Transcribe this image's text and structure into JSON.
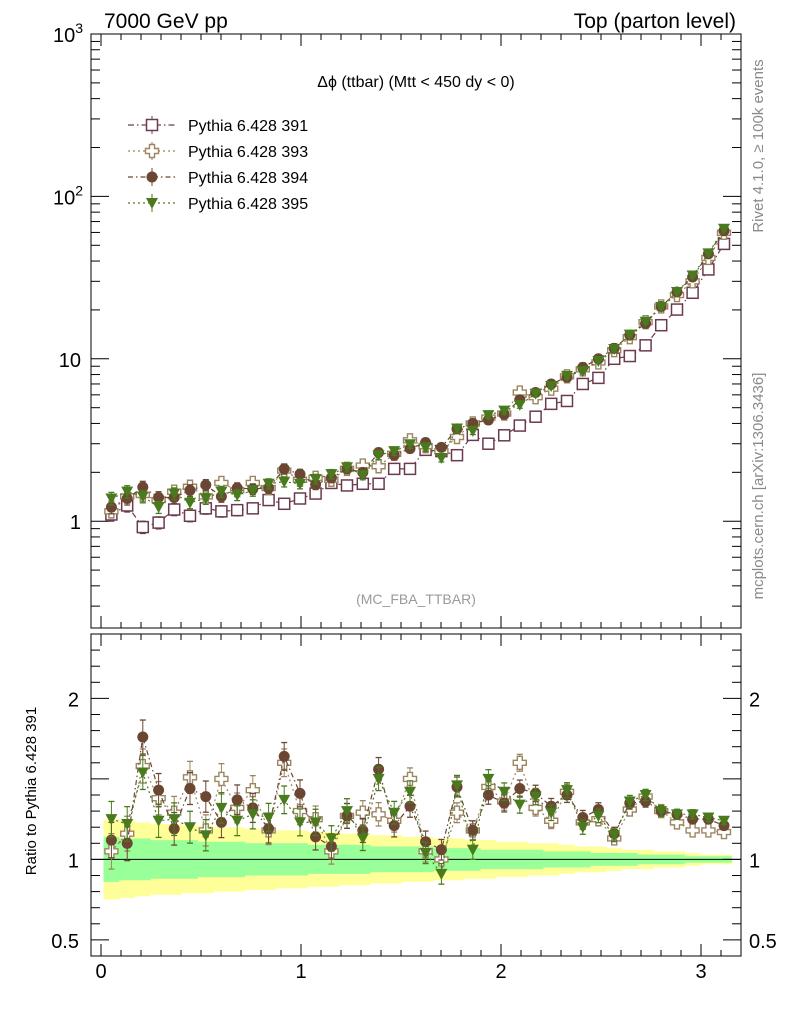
{
  "header": {
    "left_title": "7000 GeV pp",
    "right_title": "Top (parton level)"
  },
  "side_labels": {
    "rivet": "Rivet 4.1.0, ≥ 100k events",
    "mcplots": "mcplots.cern.ch [arXiv:1306.3436]"
  },
  "plot": {
    "title": "Δϕ (ttbar) (Mtt < 450 dy < 0)",
    "analysis_tag": "(MC_FBA_TTBAR)",
    "ratio_ylabel": "Ratio to Pythia 6.428 391"
  },
  "chart_data": {
    "type": "scatter",
    "x": [
      0.052,
      0.131,
      0.209,
      0.288,
      0.366,
      0.445,
      0.524,
      0.602,
      0.681,
      0.759,
      0.838,
      0.916,
      0.995,
      1.073,
      1.152,
      1.23,
      1.309,
      1.388,
      1.466,
      1.545,
      1.623,
      1.702,
      1.78,
      1.859,
      1.937,
      2.016,
      2.094,
      2.173,
      2.251,
      2.33,
      2.409,
      2.487,
      2.566,
      2.644,
      2.723,
      2.801,
      2.88,
      2.958,
      3.037,
      3.115
    ],
    "xlim": [
      -0.05,
      3.2
    ],
    "x_ticks": [
      0,
      1,
      2,
      3
    ],
    "x_tick_labels": [
      "0",
      "1",
      "2",
      "3"
    ],
    "main_panel": {
      "yscale": "log",
      "ylim": [
        0.22,
        1000
      ],
      "y_ticks": [
        1,
        10,
        100,
        1000
      ],
      "y_tick_labels": [
        "1",
        "10",
        "10²",
        "10³"
      ]
    },
    "ratio_panel": {
      "ylim": [
        0.4,
        2.4
      ],
      "y_ticks": [
        0.5,
        1,
        2
      ],
      "y_tick_labels": [
        "0.5",
        "1",
        "2"
      ],
      "reference_line": 1.0,
      "band_inner": [
        0.14,
        0.13,
        0.13,
        0.12,
        0.12,
        0.12,
        0.11,
        0.11,
        0.11,
        0.1,
        0.1,
        0.1,
        0.1,
        0.09,
        0.09,
        0.09,
        0.09,
        0.08,
        0.08,
        0.08,
        0.08,
        0.07,
        0.07,
        0.07,
        0.06,
        0.06,
        0.06,
        0.06,
        0.05,
        0.05,
        0.05,
        0.04,
        0.04,
        0.04,
        0.03,
        0.03,
        0.03,
        0.02,
        0.02,
        0.02
      ],
      "band_outer": [
        0.25,
        0.24,
        0.23,
        0.22,
        0.22,
        0.21,
        0.21,
        0.2,
        0.2,
        0.19,
        0.19,
        0.18,
        0.18,
        0.17,
        0.17,
        0.16,
        0.16,
        0.15,
        0.15,
        0.14,
        0.14,
        0.13,
        0.13,
        0.12,
        0.12,
        0.11,
        0.11,
        0.1,
        0.1,
        0.09,
        0.08,
        0.08,
        0.07,
        0.06,
        0.06,
        0.05,
        0.05,
        0.04,
        0.03,
        0.03
      ]
    },
    "series": [
      {
        "name": "Pythia 6.428 391",
        "color": "#6b3a50",
        "marker": "open-square",
        "dash": "6,3,1.5,3",
        "values": [
          1.1,
          1.25,
          0.92,
          0.98,
          1.18,
          1.08,
          1.2,
          1.15,
          1.17,
          1.2,
          1.35,
          1.28,
          1.38,
          1.48,
          1.72,
          1.66,
          1.7,
          1.7,
          2.1,
          2.1,
          2.75,
          2.7,
          2.55,
          3.4,
          3.0,
          3.38,
          3.88,
          4.4,
          5.28,
          5.5,
          7.0,
          7.63,
          10.0,
          10.4,
          12.1,
          16.1,
          20.1,
          25.5,
          35.5,
          51.0
        ]
      },
      {
        "name": "Pythia 6.428 393",
        "color": "#9b8660",
        "marker": "open-cross",
        "dash": "2,3",
        "values": [
          1.15,
          1.42,
          1.45,
          1.35,
          1.52,
          1.63,
          1.42,
          1.72,
          1.55,
          1.72,
          1.6,
          2.05,
          1.8,
          1.85,
          1.8,
          2.1,
          2.2,
          2.18,
          2.6,
          3.15,
          2.9,
          2.7,
          3.3,
          4.0,
          4.35,
          4.6,
          6.2,
          5.8,
          6.55,
          7.8,
          8.62,
          9.5,
          11.3,
          13.6,
          16.8,
          21.0,
          24.7,
          30.0,
          41.8,
          59.7
        ]
      },
      {
        "name": "Pythia 6.428 394",
        "color": "#6b4632",
        "marker": "filled-circle",
        "dash": "5,3,1.5,3",
        "values": [
          1.22,
          1.38,
          1.62,
          1.4,
          1.4,
          1.55,
          1.67,
          1.42,
          1.6,
          1.58,
          1.6,
          2.1,
          1.95,
          1.68,
          1.85,
          2.1,
          2.0,
          2.65,
          2.55,
          2.8,
          3.05,
          2.85,
          3.7,
          4.0,
          4.2,
          4.55,
          5.6,
          6.2,
          7.0,
          7.7,
          8.85,
          10.0,
          11.6,
          14.0,
          16.5,
          21.0,
          25.8,
          31.9,
          44.3,
          61.5
        ]
      },
      {
        "name": "Pythia 6.428 395",
        "color": "#4a7a1e",
        "marker": "filled-triangle-down",
        "dash": "2,3",
        "values": [
          1.38,
          1.52,
          1.42,
          1.22,
          1.48,
          1.3,
          1.38,
          1.52,
          1.45,
          1.54,
          1.7,
          1.75,
          1.7,
          1.82,
          1.95,
          2.15,
          1.92,
          2.55,
          2.7,
          2.98,
          2.85,
          2.45,
          3.72,
          3.6,
          4.5,
          4.8,
          5.2,
          6.1,
          6.8,
          7.85,
          8.4,
          9.7,
          11.5,
          14.1,
          16.9,
          20.9,
          25.8,
          32.6,
          44.6,
          63.2
        ]
      }
    ],
    "ratio_series": [
      {
        "name": "Pythia 6.428 393",
        "values": [
          1.05,
          1.16,
          1.58,
          1.38,
          1.29,
          1.51,
          1.18,
          1.5,
          1.32,
          1.43,
          1.18,
          1.6,
          1.3,
          1.25,
          1.05,
          1.27,
          1.29,
          1.28,
          1.24,
          1.5,
          1.05,
          1.0,
          1.29,
          1.18,
          1.45,
          1.36,
          1.6,
          1.32,
          1.24,
          1.42,
          1.23,
          1.25,
          1.13,
          1.31,
          1.39,
          1.3,
          1.23,
          1.18,
          1.18,
          1.17
        ]
      },
      {
        "name": "Pythia 6.428 394",
        "values": [
          1.12,
          1.1,
          1.76,
          1.43,
          1.19,
          1.44,
          1.39,
          1.23,
          1.37,
          1.32,
          1.19,
          1.64,
          1.41,
          1.14,
          1.08,
          1.27,
          1.18,
          1.56,
          1.21,
          1.33,
          1.11,
          1.06,
          1.45,
          1.18,
          1.4,
          1.35,
          1.44,
          1.41,
          1.33,
          1.4,
          1.26,
          1.31,
          1.16,
          1.35,
          1.36,
          1.3,
          1.28,
          1.25,
          1.25,
          1.21
        ]
      },
      {
        "name": "Pythia 6.428 395",
        "values": [
          1.25,
          1.22,
          1.54,
          1.24,
          1.25,
          1.2,
          1.15,
          1.32,
          1.24,
          1.28,
          1.26,
          1.37,
          1.23,
          1.23,
          1.13,
          1.3,
          1.13,
          1.5,
          1.29,
          1.42,
          1.04,
          0.91,
          1.46,
          1.06,
          1.5,
          1.42,
          1.34,
          1.39,
          1.29,
          1.43,
          1.2,
          1.27,
          1.15,
          1.36,
          1.4,
          1.3,
          1.28,
          1.28,
          1.26,
          1.24
        ]
      }
    ]
  }
}
